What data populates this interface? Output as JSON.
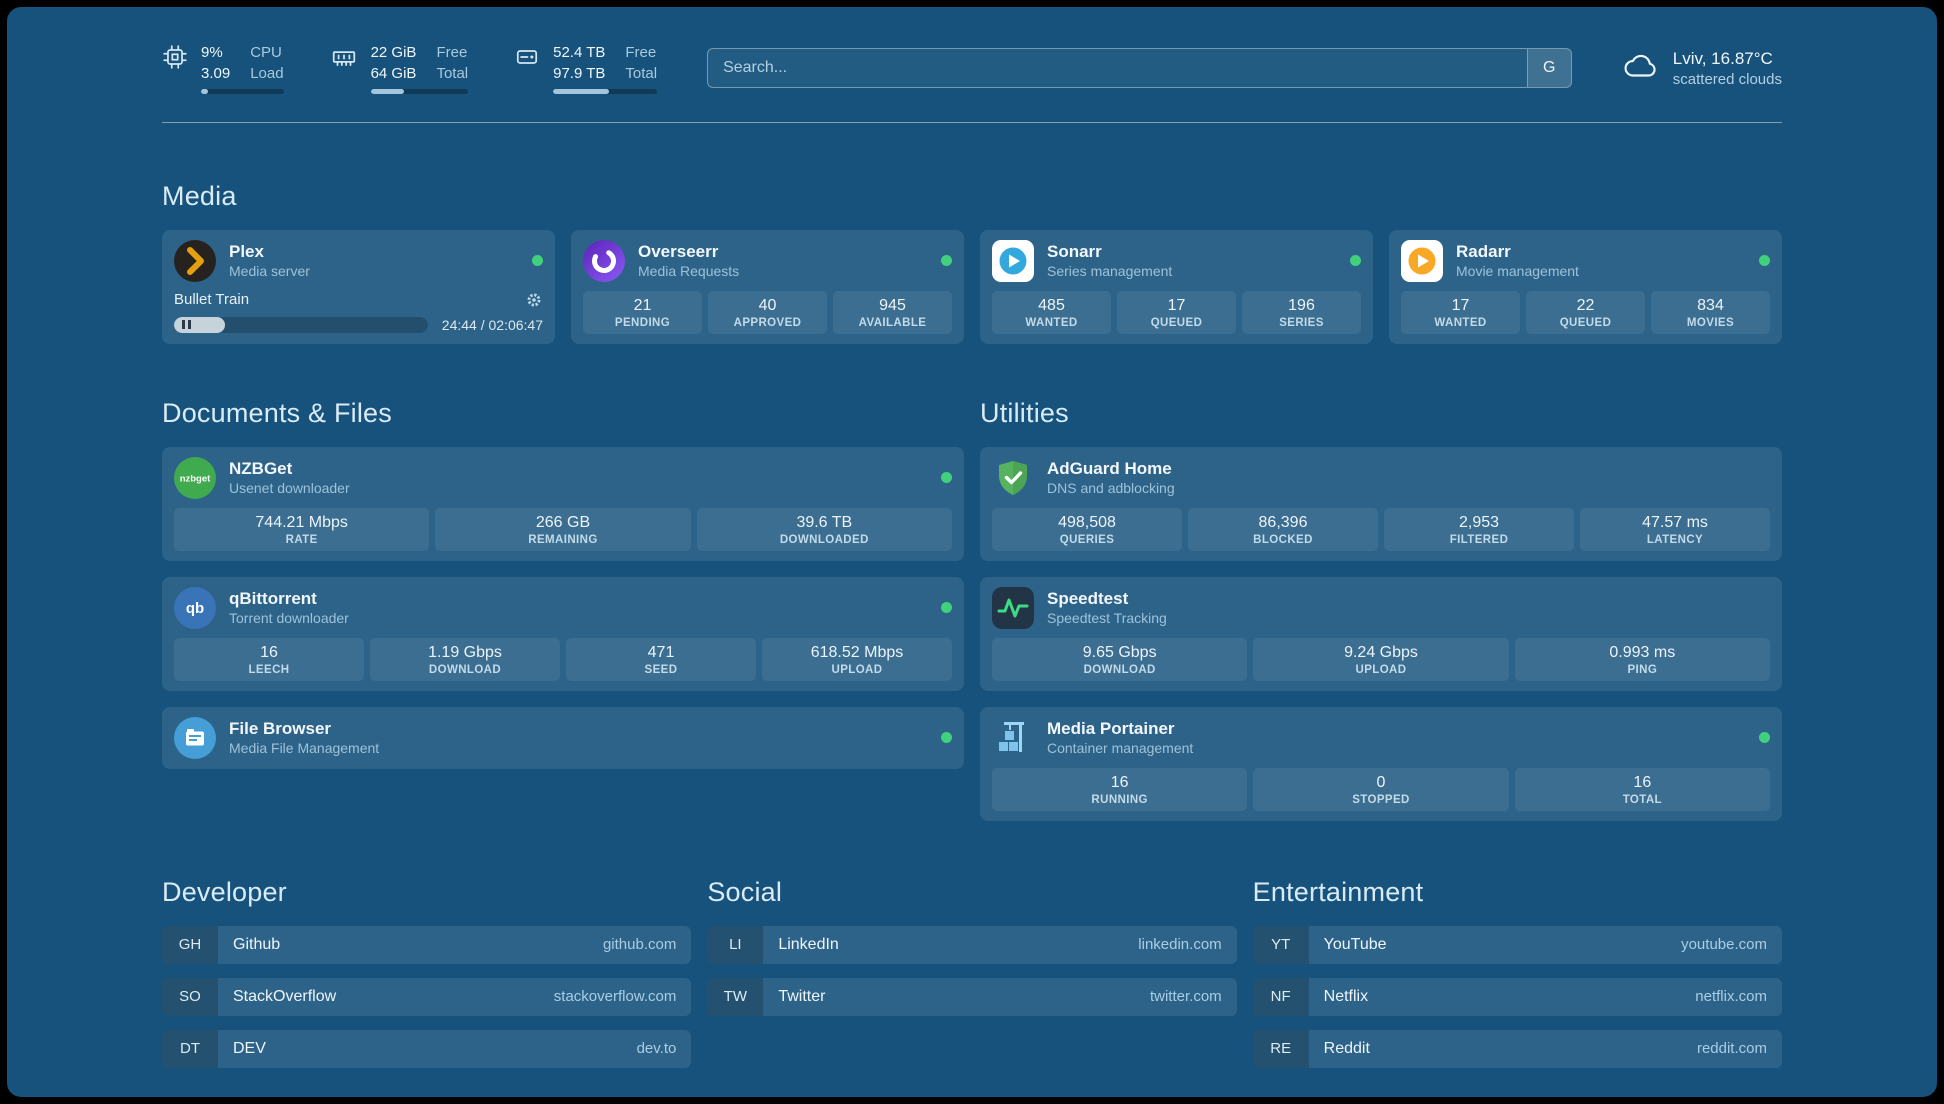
{
  "topbar": {
    "resources": [
      {
        "icon": "cpu-icon",
        "values": [
          "9%",
          "3.09"
        ],
        "labels": [
          "CPU",
          "Load"
        ],
        "percent": 9
      },
      {
        "icon": "memory-icon",
        "values": [
          "22 GiB",
          "64 GiB"
        ],
        "labels": [
          "Free",
          "Total"
        ],
        "percent": 34
      },
      {
        "icon": "disk-icon",
        "values": [
          "52.4 TB",
          "97.9 TB"
        ],
        "labels": [
          "Free",
          "Total"
        ],
        "percent": 54
      }
    ],
    "search": {
      "placeholder": "Search...",
      "provider_label": "G"
    },
    "weather": {
      "icon": "cloud-icon",
      "location": "Lviv, 16.87°C",
      "condition": "scattered clouds"
    }
  },
  "sections": {
    "media": {
      "title": "Media",
      "plex": {
        "icon": "plex-icon",
        "name": "Plex",
        "subtitle": "Media server",
        "status": "online",
        "now_playing": "Bullet Train",
        "time": "24:44 / 02:06:47",
        "progress_percent": 20
      },
      "overseerr": {
        "icon": "overseerr-icon",
        "name": "Overseerr",
        "subtitle": "Media Requests",
        "status": "online",
        "stats": [
          {
            "value": "21",
            "label": "PENDING"
          },
          {
            "value": "40",
            "label": "APPROVED"
          },
          {
            "value": "945",
            "label": "AVAILABLE"
          }
        ]
      },
      "sonarr": {
        "icon": "sonarr-icon",
        "name": "Sonarr",
        "subtitle": "Series management",
        "status": "online",
        "stats": [
          {
            "value": "485",
            "label": "WANTED"
          },
          {
            "value": "17",
            "label": "QUEUED"
          },
          {
            "value": "196",
            "label": "SERIES"
          }
        ]
      },
      "radarr": {
        "icon": "radarr-icon",
        "name": "Radarr",
        "subtitle": "Movie management",
        "status": "online",
        "stats": [
          {
            "value": "17",
            "label": "WANTED"
          },
          {
            "value": "22",
            "label": "QUEUED"
          },
          {
            "value": "834",
            "label": "MOVIES"
          }
        ]
      }
    },
    "documents": {
      "title": "Documents & Files",
      "nzbget": {
        "icon": "nzbget-icon",
        "name": "NZBGet",
        "subtitle": "Usenet downloader",
        "status": "online",
        "stats": [
          {
            "value": "744.21 Mbps",
            "label": "RATE"
          },
          {
            "value": "266 GB",
            "label": "REMAINING"
          },
          {
            "value": "39.6 TB",
            "label": "DOWNLOADED"
          }
        ]
      },
      "qbittorrent": {
        "icon": "qbittorrent-icon",
        "name": "qBittorrent",
        "subtitle": "Torrent downloader",
        "status": "online",
        "stats": [
          {
            "value": "16",
            "label": "LEECH"
          },
          {
            "value": "1.19 Gbps",
            "label": "DOWNLOAD"
          },
          {
            "value": "471",
            "label": "SEED"
          },
          {
            "value": "618.52 Mbps",
            "label": "UPLOAD"
          }
        ]
      },
      "filebrowser": {
        "icon": "filebrowser-icon",
        "name": "File Browser",
        "subtitle": "Media File Management",
        "status": "online"
      }
    },
    "utilities": {
      "title": "Utilities",
      "adguard": {
        "icon": "adguard-icon",
        "name": "AdGuard Home",
        "subtitle": "DNS and adblocking",
        "stats": [
          {
            "value": "498,508",
            "label": "QUERIES"
          },
          {
            "value": "86,396",
            "label": "BLOCKED"
          },
          {
            "value": "2,953",
            "label": "FILTERED"
          },
          {
            "value": "47.57 ms",
            "label": "LATENCY"
          }
        ]
      },
      "speedtest": {
        "icon": "speedtest-icon",
        "name": "Speedtest",
        "subtitle": "Speedtest Tracking",
        "stats": [
          {
            "value": "9.65 Gbps",
            "label": "DOWNLOAD"
          },
          {
            "value": "9.24 Gbps",
            "label": "UPLOAD"
          },
          {
            "value": "0.993 ms",
            "label": "PING"
          }
        ]
      },
      "portainer": {
        "icon": "portainer-icon",
        "name": "Media Portainer",
        "subtitle": "Container management",
        "status": "online",
        "stats": [
          {
            "value": "16",
            "label": "RUNNING"
          },
          {
            "value": "0",
            "label": "STOPPED"
          },
          {
            "value": "16",
            "label": "TOTAL"
          }
        ]
      }
    }
  },
  "bookmarks": [
    {
      "title": "Developer",
      "items": [
        {
          "abbr": "GH",
          "name": "Github",
          "url": "github.com"
        },
        {
          "abbr": "SO",
          "name": "StackOverflow",
          "url": "stackoverflow.com"
        },
        {
          "abbr": "DT",
          "name": "DEV",
          "url": "dev.to"
        }
      ]
    },
    {
      "title": "Social",
      "items": [
        {
          "abbr": "LI",
          "name": "LinkedIn",
          "url": "linkedin.com"
        },
        {
          "abbr": "TW",
          "name": "Twitter",
          "url": "twitter.com"
        }
      ]
    },
    {
      "title": "Entertainment",
      "items": [
        {
          "abbr": "YT",
          "name": "YouTube",
          "url": "youtube.com"
        },
        {
          "abbr": "NF",
          "name": "Netflix",
          "url": "netflix.com"
        },
        {
          "abbr": "RE",
          "name": "Reddit",
          "url": "reddit.com"
        }
      ]
    }
  ],
  "colors": {
    "background": "#16527b",
    "status_online": "#41d17d",
    "plex_amber": "#e5a00d",
    "sonarr_blue": "#33a8dd",
    "radarr_orange": "#f9a825",
    "nzbget_green": "#3faa4e",
    "adguard_green": "#57b35f",
    "speedtest_green": "#3ddc84"
  }
}
